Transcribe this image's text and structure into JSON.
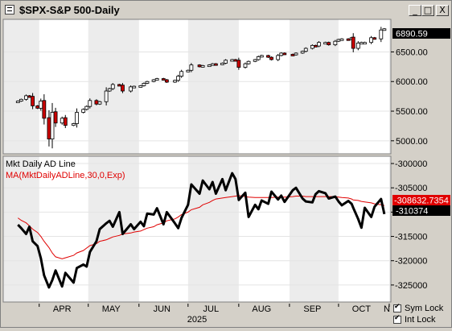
{
  "window": {
    "title": "$SPX-S&P 500-Daily",
    "buttons": {
      "minimize": "_",
      "maximize": "□",
      "close": "X"
    },
    "icon": "chart-window-icon"
  },
  "top_panel": {
    "symbol": "$SPX",
    "name": "S&P 500",
    "period": "Daily",
    "last_price_label": "6890.59",
    "last_price": 6890.59,
    "y_ticks": [
      "6500.00",
      "6000.00",
      "5500.00",
      "5000.00"
    ],
    "y_tick_values": [
      6500,
      6000,
      5500,
      5000
    ],
    "y_range": [
      4780,
      7050
    ]
  },
  "bottom_panel": {
    "indicator_label": "Mkt Daily AD Line",
    "ma_label": "MA(MktDailyADLine,30,0,Exp)",
    "ma_color": "#e00000",
    "line_color": "#000000",
    "ma_value_label": "-308632.7354",
    "last_value_label": "-310374",
    "y_ticks": [
      "-300000",
      "-305000",
      "-310000",
      "-315000",
      "-320000",
      "-325000"
    ],
    "y_tick_values": [
      -300000,
      -305000,
      -310000,
      -315000,
      -320000,
      -325000
    ],
    "y_range": [
      -328500,
      -298500
    ]
  },
  "x_axis": {
    "months": [
      "APR",
      "MAY",
      "JUN",
      "JUL",
      "AUG",
      "SEP",
      "OCT",
      "N"
    ],
    "year": "2025"
  },
  "locks": [
    {
      "label": "Sym Lock",
      "checked": true
    },
    {
      "label": "Int Lock",
      "checked": true
    }
  ],
  "chart_data": [
    {
      "type": "candlestick",
      "title": "$SPX-S&P 500-Daily",
      "ylim": [
        4780,
        7050
      ],
      "up_color": "#ffffff",
      "down_color": "#cc0000",
      "x": [
        "2025-03-19",
        "2025-03-21",
        "2025-03-24",
        "2025-03-26",
        "2025-03-28",
        "2025-03-31",
        "2025-04-02",
        "2025-04-04",
        "2025-04-07",
        "2025-04-09",
        "2025-04-11",
        "2025-04-15",
        "2025-04-17",
        "2025-04-22",
        "2025-04-24",
        "2025-04-28",
        "2025-04-30",
        "2025-05-02",
        "2025-05-06",
        "2025-05-08",
        "2025-05-12",
        "2025-05-14",
        "2025-05-16",
        "2025-05-20",
        "2025-05-22",
        "2025-05-27",
        "2025-05-29",
        "2025-06-02",
        "2025-06-04",
        "2025-06-06",
        "2025-06-10",
        "2025-06-12",
        "2025-06-16",
        "2025-06-18",
        "2025-06-23",
        "2025-06-25",
        "2025-06-27",
        "2025-07-01",
        "2025-07-03",
        "2025-07-08",
        "2025-07-10",
        "2025-07-14",
        "2025-07-16",
        "2025-07-18",
        "2025-07-22",
        "2025-07-24",
        "2025-07-28",
        "2025-07-30",
        "2025-08-01",
        "2025-08-05",
        "2025-08-07",
        "2025-08-11",
        "2025-08-13",
        "2025-08-15",
        "2025-08-19",
        "2025-08-21",
        "2025-08-25",
        "2025-08-27",
        "2025-08-29",
        "2025-09-03",
        "2025-09-05",
        "2025-09-09",
        "2025-09-11",
        "2025-09-15",
        "2025-09-17",
        "2025-09-19",
        "2025-09-23",
        "2025-09-25",
        "2025-09-29",
        "2025-10-01",
        "2025-10-03",
        "2025-10-07",
        "2025-10-09",
        "2025-10-10",
        "2025-10-13",
        "2025-10-15",
        "2025-10-17",
        "2025-10-21",
        "2025-10-23",
        "2025-10-27",
        "2025-10-29"
      ],
      "close": [
        5670,
        5700,
        5760,
        5740,
        5590,
        5550,
        5670,
        5380,
        5030,
        5480,
        5300,
        5380,
        5260,
        5290,
        5480,
        5530,
        5580,
        5680,
        5620,
        5660,
        5840,
        5880,
        5950,
        5940,
        5840,
        5910,
        5920,
        5930,
        5970,
        6000,
        6030,
        6050,
        6030,
        5990,
        6020,
        6090,
        6170,
        6190,
        6280,
        6250,
        6270,
        6280,
        6300,
        6290,
        6310,
        6360,
        6370,
        6360,
        6240,
        6300,
        6340,
        6370,
        6420,
        6440,
        6410,
        6370,
        6440,
        6480,
        6460,
        6450,
        6480,
        6510,
        6560,
        6610,
        6600,
        6660,
        6660,
        6620,
        6680,
        6710,
        6720,
        6710,
        6740,
        6560,
        6650,
        6660,
        6660,
        6740,
        6720,
        6870,
        6890
      ],
      "down_days": [
        "2025-03-28",
        "2025-04-04",
        "2025-04-07",
        "2025-04-11",
        "2025-04-17",
        "2025-07-31",
        "2025-10-10"
      ]
    },
    {
      "type": "line",
      "title": "Mkt Daily AD Line",
      "ylim": [
        -328500,
        -298500
      ],
      "series": [
        {
          "name": "Mkt Daily AD Line",
          "color": "#000000",
          "values": [
            -312600,
            -313300,
            -314500,
            -313000,
            -316000,
            -317000,
            -319500,
            -323000,
            -325500,
            -324000,
            -322000,
            -325300,
            -322500,
            -324500,
            -321500,
            -320800,
            -321200,
            -318200,
            -316000,
            -313500,
            -312300,
            -311800,
            -313000,
            -310000,
            -314500,
            -312500,
            -313500,
            -312000,
            -312900,
            -310300,
            -310500,
            -309200,
            -312500,
            -310000,
            -312300,
            -313300,
            -311200,
            -308500,
            -304300,
            -306200,
            -303500,
            -305300,
            -303800,
            -306200,
            -303200,
            -305500,
            -302000,
            -303200,
            -307500,
            -306000,
            -311000,
            -308500,
            -309400,
            -307600,
            -308300,
            -305800,
            -307400,
            -306600,
            -307900,
            -305500,
            -305000,
            -307200,
            -307800,
            -308000,
            -306300,
            -305700,
            -306100,
            -307200,
            -306800,
            -307800,
            -308600,
            -307700,
            -308300,
            -309100,
            -311400,
            -313200,
            -309100,
            -311000,
            -308900,
            -307300,
            -310400
          ]
        },
        {
          "name": "MA(MktDailyADLine,30,0,Exp)",
          "color": "#e00000",
          "values": [
            -311200,
            -311700,
            -312200,
            -312800,
            -313500,
            -314200,
            -315000,
            -316000,
            -317300,
            -318400,
            -319200,
            -319600,
            -319400,
            -318900,
            -318400,
            -317900,
            -317400,
            -316900,
            -316500,
            -316000,
            -315700,
            -315400,
            -315100,
            -314800,
            -314500,
            -314300,
            -314100,
            -313900,
            -313600,
            -313300,
            -313000,
            -312600,
            -312200,
            -311800,
            -311400,
            -311000,
            -310500,
            -310000,
            -309500,
            -309000,
            -308500,
            -308000,
            -307600,
            -307300,
            -307100,
            -307000,
            -306800,
            -306700,
            -306600,
            -306800,
            -306900,
            -307000,
            -307000,
            -307000,
            -307000,
            -307000,
            -306900,
            -306900,
            -306900,
            -306800,
            -306700,
            -306700,
            -306800,
            -306800,
            -306800,
            -306800,
            -306800,
            -306800,
            -306800,
            -306900,
            -307000,
            -307100,
            -307300,
            -307500,
            -307600,
            -307800,
            -307900,
            -308100,
            -308300,
            -308500,
            -308633
          ]
        }
      ]
    }
  ]
}
